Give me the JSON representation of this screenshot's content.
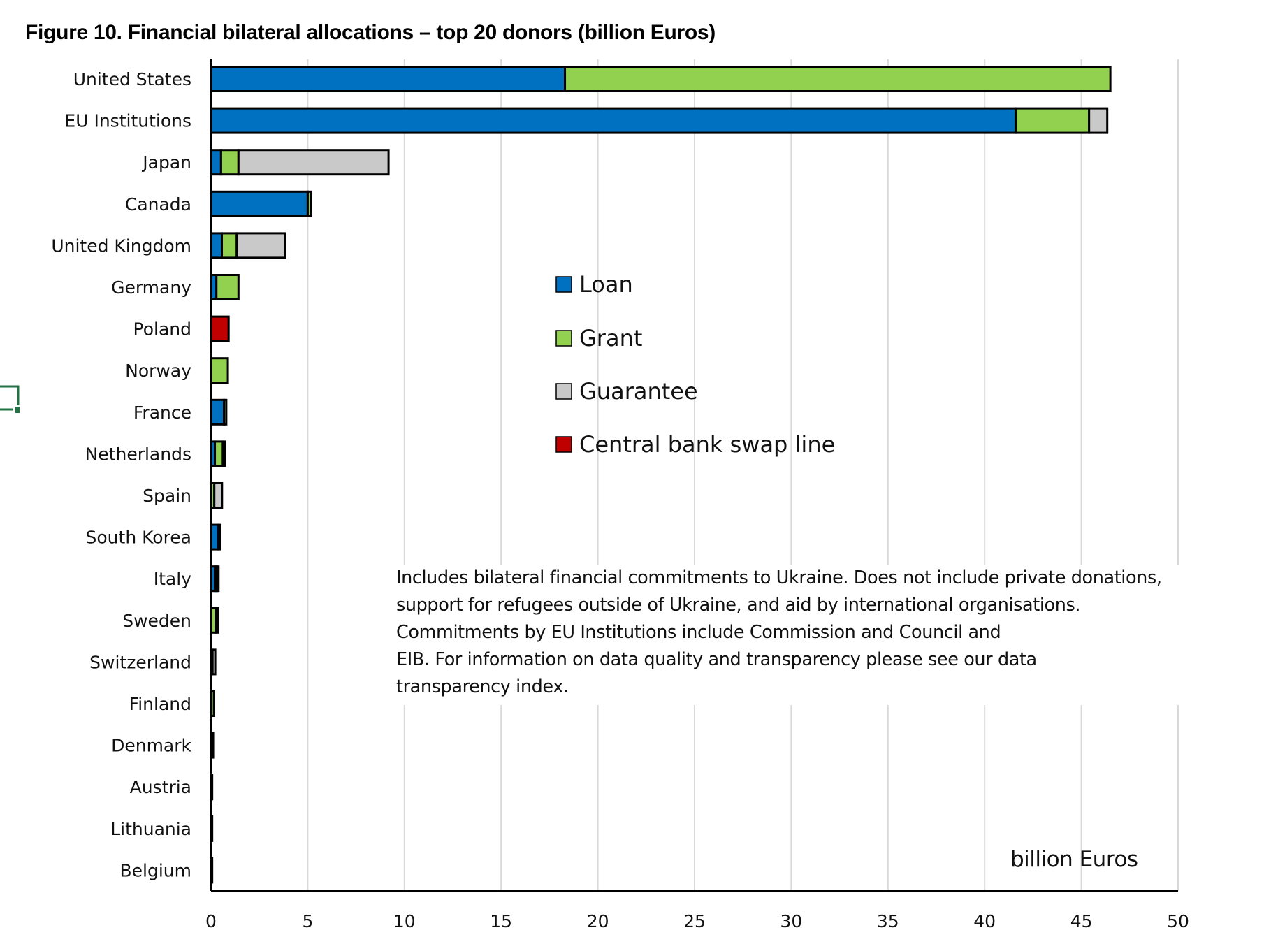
{
  "chart_data": {
    "type": "bar",
    "orientation": "horizontal",
    "stacked": true,
    "title": "Figure 10. Financial bilateral allocations – top 20 donors (billion Euros)",
    "xlabel": "billion Euros",
    "ylabel": "",
    "xlim": [
      0,
      50
    ],
    "xticks": [
      0,
      5,
      10,
      15,
      20,
      25,
      30,
      35,
      40,
      45,
      50
    ],
    "grid": "vertical",
    "legend_position": "center",
    "categories": [
      "United States",
      "EU Institutions",
      "Japan",
      "Canada",
      "United Kingdom",
      "Germany",
      "Poland",
      "Norway",
      "France",
      "Netherlands",
      "Spain",
      "South Korea",
      "Italy",
      "Sweden",
      "Switzerland",
      "Finland",
      "Denmark",
      "Austria",
      "Lithuania",
      "Belgium"
    ],
    "series": [
      {
        "name": "Loan",
        "color": "#0070C0",
        "values": [
          18.3,
          41.6,
          0.52,
          5.0,
          0.56,
          0.28,
          0,
          0,
          0.67,
          0.2,
          0,
          0.38,
          0.2,
          0,
          0,
          0,
          0,
          0.04,
          0.04,
          0.03
        ]
      },
      {
        "name": "Grant",
        "color": "#92D050",
        "values": [
          28.2,
          3.8,
          0.9,
          0.15,
          0.77,
          1.14,
          0,
          0.87,
          0.12,
          0.41,
          0.17,
          0.1,
          0.1,
          0.24,
          0.08,
          0.15,
          0.11,
          0.02,
          0.02,
          0.03
        ]
      },
      {
        "name": "Guarantee",
        "color": "#C9C9C9",
        "values": [
          0,
          0.94,
          7.76,
          0,
          2.5,
          0,
          0,
          0,
          0,
          0.11,
          0.4,
          0,
          0.09,
          0.12,
          0.14,
          0,
          0,
          0,
          0,
          0
        ]
      },
      {
        "name": "Central bank swap line",
        "color": "#C00000",
        "values": [
          0,
          0,
          0,
          0,
          0,
          0,
          0.91,
          0,
          0,
          0,
          0,
          0,
          0,
          0,
          0,
          0,
          0,
          0,
          0,
          0
        ]
      }
    ],
    "annotations": [
      "Includes bilateral financial commitments to Ukraine. Does not include private donations,",
      "support for refugees outside of Ukraine, and aid by international organisations.",
      "Commitments by EU Institutions include Commission and Council and",
      "EIB. For information on data quality and transparency please see our data",
      "transparency index."
    ]
  },
  "ui": {
    "selection_handle_color": "#217346",
    "selection_handle_icon": "cell-selection-handle-icon"
  }
}
